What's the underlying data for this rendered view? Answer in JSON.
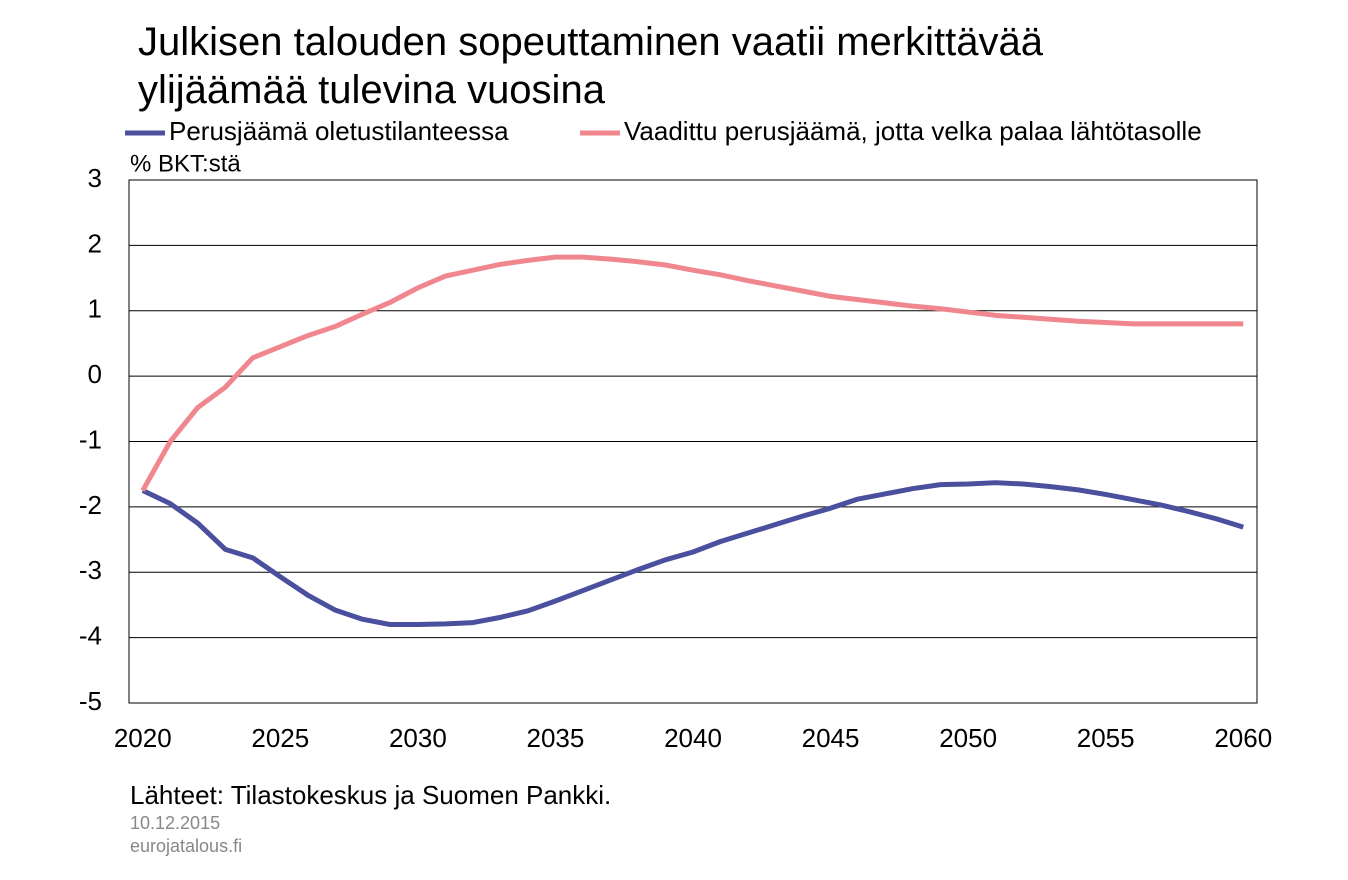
{
  "chart_data": {
    "type": "line",
    "title": "Julkisen talouden sopeuttaminen vaatii merkittävää ylijäämää tulevina vuosina",
    "y_label": "% BKT:stä",
    "source": "Lähteet: Tilastokeskus ja Suomen Pankki.",
    "date": "10.12.2015",
    "site": "eurojatalous.fi",
    "x": [
      2020,
      2021,
      2022,
      2023,
      2024,
      2025,
      2026,
      2027,
      2028,
      2029,
      2030,
      2031,
      2032,
      2033,
      2034,
      2035,
      2036,
      2037,
      2038,
      2039,
      2040,
      2041,
      2042,
      2043,
      2044,
      2045,
      2046,
      2047,
      2048,
      2049,
      2050,
      2051,
      2052,
      2053,
      2054,
      2055,
      2056,
      2057,
      2058,
      2059,
      2060
    ],
    "series": [
      {
        "name": "Perusjäämä oletustilanteessa",
        "color": "#4a4f9e",
        "values": [
          -1.75,
          -1.95,
          -2.25,
          -2.65,
          -2.78,
          -3.07,
          -3.35,
          -3.58,
          -3.72,
          -3.8,
          -3.8,
          -3.79,
          -3.77,
          -3.69,
          -3.59,
          -3.44,
          -3.28,
          -3.12,
          -2.96,
          -2.81,
          -2.69,
          -2.53,
          -2.4,
          -2.27,
          -2.14,
          -2.02,
          -1.88,
          -1.8,
          -1.72,
          -1.66,
          -1.65,
          -1.63,
          -1.65,
          -1.69,
          -1.74,
          -1.81,
          -1.89,
          -1.97,
          -2.07,
          -2.18,
          -2.31
        ]
      },
      {
        "name": "Vaadittu perusjäämä, jotta velka palaa lähtötasolle",
        "color": "#f0878f",
        "values": [
          -1.75,
          -1.0,
          -0.48,
          -0.17,
          0.28,
          0.45,
          0.62,
          0.76,
          0.95,
          1.13,
          1.35,
          1.53,
          1.62,
          1.71,
          1.77,
          1.82,
          1.82,
          1.79,
          1.75,
          1.7,
          1.62,
          1.55,
          1.46,
          1.38,
          1.3,
          1.22,
          1.17,
          1.12,
          1.07,
          1.03,
          0.98,
          0.93,
          0.9,
          0.87,
          0.84,
          0.82,
          0.8,
          0.8,
          0.8,
          0.8,
          0.8
        ]
      }
    ],
    "xlim": [
      2019.5,
      2060.5
    ],
    "xticks": [
      2020,
      2025,
      2030,
      2035,
      2040,
      2045,
      2050,
      2055,
      2060
    ],
    "ylim": [
      -5,
      3
    ],
    "yticks": [
      -5,
      -4,
      -3,
      -2,
      -1,
      0,
      1,
      2,
      3
    ],
    "grid": true
  }
}
